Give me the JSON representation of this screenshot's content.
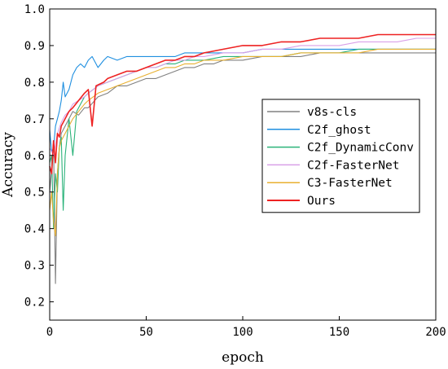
{
  "chart_data": {
    "type": "line",
    "title": "",
    "xlabel": "epoch",
    "ylabel": "Accuracy",
    "xlim": [
      0,
      200
    ],
    "ylim": [
      0.15,
      1.0
    ],
    "xticks": [
      0,
      50,
      100,
      150,
      200
    ],
    "yticks": [
      0.2,
      0.3,
      0.4,
      0.5,
      0.6,
      0.7,
      0.8,
      0.9,
      1.0
    ],
    "xtick_labels": [
      "0",
      "50",
      "100",
      "150",
      "200"
    ],
    "ytick_labels": [
      "0.2",
      "0.3",
      "0.4",
      "0.5",
      "0.6",
      "0.7",
      "0.8",
      "0.9",
      "1.0"
    ],
    "grid": false,
    "legend_position": "center-right",
    "series": [
      {
        "name": "v8s-cls",
        "color": "#808080",
        "points": [
          [
            0,
            0.5
          ],
          [
            1,
            0.56
          ],
          [
            2,
            0.64
          ],
          [
            3,
            0.25
          ],
          [
            4,
            0.55
          ],
          [
            5,
            0.62
          ],
          [
            6,
            0.66
          ],
          [
            8,
            0.68
          ],
          [
            10,
            0.7
          ],
          [
            12,
            0.72
          ],
          [
            15,
            0.71
          ],
          [
            18,
            0.73
          ],
          [
            20,
            0.73
          ],
          [
            25,
            0.76
          ],
          [
            30,
            0.77
          ],
          [
            35,
            0.79
          ],
          [
            40,
            0.79
          ],
          [
            45,
            0.8
          ],
          [
            50,
            0.81
          ],
          [
            55,
            0.81
          ],
          [
            60,
            0.82
          ],
          [
            65,
            0.83
          ],
          [
            70,
            0.84
          ],
          [
            75,
            0.84
          ],
          [
            80,
            0.85
          ],
          [
            85,
            0.85
          ],
          [
            90,
            0.86
          ],
          [
            95,
            0.86
          ],
          [
            100,
            0.86
          ],
          [
            110,
            0.87
          ],
          [
            120,
            0.87
          ],
          [
            130,
            0.87
          ],
          [
            140,
            0.88
          ],
          [
            150,
            0.88
          ],
          [
            160,
            0.88
          ],
          [
            170,
            0.88
          ],
          [
            180,
            0.88
          ],
          [
            190,
            0.88
          ],
          [
            200,
            0.88
          ]
        ]
      },
      {
        "name": "C2f_ghost",
        "color": "#1f8fe0",
        "points": [
          [
            0,
            0.67
          ],
          [
            1,
            0.61
          ],
          [
            2,
            0.62
          ],
          [
            3,
            0.68
          ],
          [
            4,
            0.7
          ],
          [
            5,
            0.72
          ],
          [
            6,
            0.75
          ],
          [
            7,
            0.8
          ],
          [
            8,
            0.76
          ],
          [
            10,
            0.78
          ],
          [
            12,
            0.82
          ],
          [
            14,
            0.84
          ],
          [
            16,
            0.85
          ],
          [
            18,
            0.84
          ],
          [
            20,
            0.86
          ],
          [
            22,
            0.87
          ],
          [
            25,
            0.84
          ],
          [
            28,
            0.86
          ],
          [
            30,
            0.87
          ],
          [
            35,
            0.86
          ],
          [
            40,
            0.87
          ],
          [
            45,
            0.87
          ],
          [
            50,
            0.87
          ],
          [
            55,
            0.87
          ],
          [
            60,
            0.87
          ],
          [
            65,
            0.87
          ],
          [
            70,
            0.88
          ],
          [
            75,
            0.88
          ],
          [
            80,
            0.88
          ],
          [
            90,
            0.88
          ],
          [
            100,
            0.88
          ],
          [
            110,
            0.89
          ],
          [
            120,
            0.89
          ],
          [
            130,
            0.89
          ],
          [
            140,
            0.89
          ],
          [
            150,
            0.89
          ],
          [
            160,
            0.89
          ],
          [
            170,
            0.89
          ],
          [
            180,
            0.89
          ],
          [
            190,
            0.89
          ],
          [
            200,
            0.89
          ]
        ]
      },
      {
        "name": "C2f_DynamicConv",
        "color": "#2bb37a",
        "points": [
          [
            0,
            0.58
          ],
          [
            1,
            0.6
          ],
          [
            2,
            0.4
          ],
          [
            3,
            0.55
          ],
          [
            4,
            0.5
          ],
          [
            5,
            0.62
          ],
          [
            6,
            0.65
          ],
          [
            7,
            0.45
          ],
          [
            8,
            0.6
          ],
          [
            10,
            0.7
          ],
          [
            12,
            0.6
          ],
          [
            14,
            0.72
          ],
          [
            16,
            0.74
          ],
          [
            18,
            0.76
          ],
          [
            20,
            0.77
          ],
          [
            25,
            0.79
          ],
          [
            30,
            0.8
          ],
          [
            35,
            0.81
          ],
          [
            40,
            0.82
          ],
          [
            45,
            0.83
          ],
          [
            50,
            0.84
          ],
          [
            55,
            0.84
          ],
          [
            60,
            0.85
          ],
          [
            65,
            0.85
          ],
          [
            70,
            0.86
          ],
          [
            75,
            0.86
          ],
          [
            80,
            0.86
          ],
          [
            90,
            0.87
          ],
          [
            100,
            0.87
          ],
          [
            110,
            0.87
          ],
          [
            120,
            0.87
          ],
          [
            130,
            0.88
          ],
          [
            140,
            0.88
          ],
          [
            150,
            0.88
          ],
          [
            160,
            0.89
          ],
          [
            170,
            0.89
          ],
          [
            180,
            0.89
          ],
          [
            190,
            0.89
          ],
          [
            200,
            0.89
          ]
        ]
      },
      {
        "name": "C2f-FasterNet",
        "color": "#d9a0e8",
        "points": [
          [
            0,
            0.62
          ],
          [
            2,
            0.6
          ],
          [
            4,
            0.66
          ],
          [
            6,
            0.69
          ],
          [
            8,
            0.71
          ],
          [
            10,
            0.72
          ],
          [
            12,
            0.74
          ],
          [
            15,
            0.75
          ],
          [
            18,
            0.76
          ],
          [
            20,
            0.77
          ],
          [
            25,
            0.79
          ],
          [
            30,
            0.8
          ],
          [
            35,
            0.81
          ],
          [
            40,
            0.82
          ],
          [
            45,
            0.83
          ],
          [
            50,
            0.84
          ],
          [
            55,
            0.84
          ],
          [
            60,
            0.85
          ],
          [
            65,
            0.86
          ],
          [
            70,
            0.86
          ],
          [
            75,
            0.87
          ],
          [
            80,
            0.87
          ],
          [
            90,
            0.88
          ],
          [
            100,
            0.88
          ],
          [
            110,
            0.89
          ],
          [
            120,
            0.89
          ],
          [
            130,
            0.9
          ],
          [
            140,
            0.9
          ],
          [
            150,
            0.9
          ],
          [
            160,
            0.91
          ],
          [
            170,
            0.91
          ],
          [
            180,
            0.91
          ],
          [
            190,
            0.92
          ],
          [
            200,
            0.92
          ]
        ]
      },
      {
        "name": "C3-FasterNet",
        "color": "#e8b030",
        "points": [
          [
            0,
            0.45
          ],
          [
            1,
            0.5
          ],
          [
            2,
            0.42
          ],
          [
            3,
            0.38
          ],
          [
            4,
            0.55
          ],
          [
            5,
            0.62
          ],
          [
            6,
            0.64
          ],
          [
            8,
            0.66
          ],
          [
            10,
            0.68
          ],
          [
            12,
            0.7
          ],
          [
            15,
            0.72
          ],
          [
            18,
            0.74
          ],
          [
            20,
            0.75
          ],
          [
            25,
            0.77
          ],
          [
            30,
            0.78
          ],
          [
            35,
            0.79
          ],
          [
            40,
            0.8
          ],
          [
            45,
            0.81
          ],
          [
            50,
            0.82
          ],
          [
            55,
            0.83
          ],
          [
            60,
            0.84
          ],
          [
            65,
            0.84
          ],
          [
            70,
            0.85
          ],
          [
            75,
            0.85
          ],
          [
            80,
            0.86
          ],
          [
            90,
            0.86
          ],
          [
            100,
            0.87
          ],
          [
            110,
            0.87
          ],
          [
            120,
            0.87
          ],
          [
            130,
            0.88
          ],
          [
            140,
            0.88
          ],
          [
            150,
            0.88
          ],
          [
            160,
            0.88
          ],
          [
            170,
            0.89
          ],
          [
            180,
            0.89
          ],
          [
            190,
            0.89
          ],
          [
            200,
            0.89
          ]
        ]
      },
      {
        "name": "Ours",
        "color": "#ee2222",
        "points": [
          [
            0,
            0.57
          ],
          [
            1,
            0.55
          ],
          [
            2,
            0.64
          ],
          [
            3,
            0.58
          ],
          [
            4,
            0.66
          ],
          [
            5,
            0.65
          ],
          [
            6,
            0.68
          ],
          [
            8,
            0.7
          ],
          [
            10,
            0.72
          ],
          [
            12,
            0.73
          ],
          [
            15,
            0.75
          ],
          [
            18,
            0.77
          ],
          [
            20,
            0.78
          ],
          [
            22,
            0.68
          ],
          [
            24,
            0.79
          ],
          [
            28,
            0.8
          ],
          [
            30,
            0.81
          ],
          [
            35,
            0.82
          ],
          [
            40,
            0.83
          ],
          [
            45,
            0.83
          ],
          [
            50,
            0.84
          ],
          [
            55,
            0.85
          ],
          [
            60,
            0.86
          ],
          [
            65,
            0.86
          ],
          [
            70,
            0.87
          ],
          [
            75,
            0.87
          ],
          [
            80,
            0.88
          ],
          [
            90,
            0.89
          ],
          [
            100,
            0.9
          ],
          [
            110,
            0.9
          ],
          [
            120,
            0.91
          ],
          [
            130,
            0.91
          ],
          [
            140,
            0.92
          ],
          [
            150,
            0.92
          ],
          [
            160,
            0.92
          ],
          [
            170,
            0.93
          ],
          [
            180,
            0.93
          ],
          [
            190,
            0.93
          ],
          [
            200,
            0.93
          ]
        ]
      }
    ]
  }
}
